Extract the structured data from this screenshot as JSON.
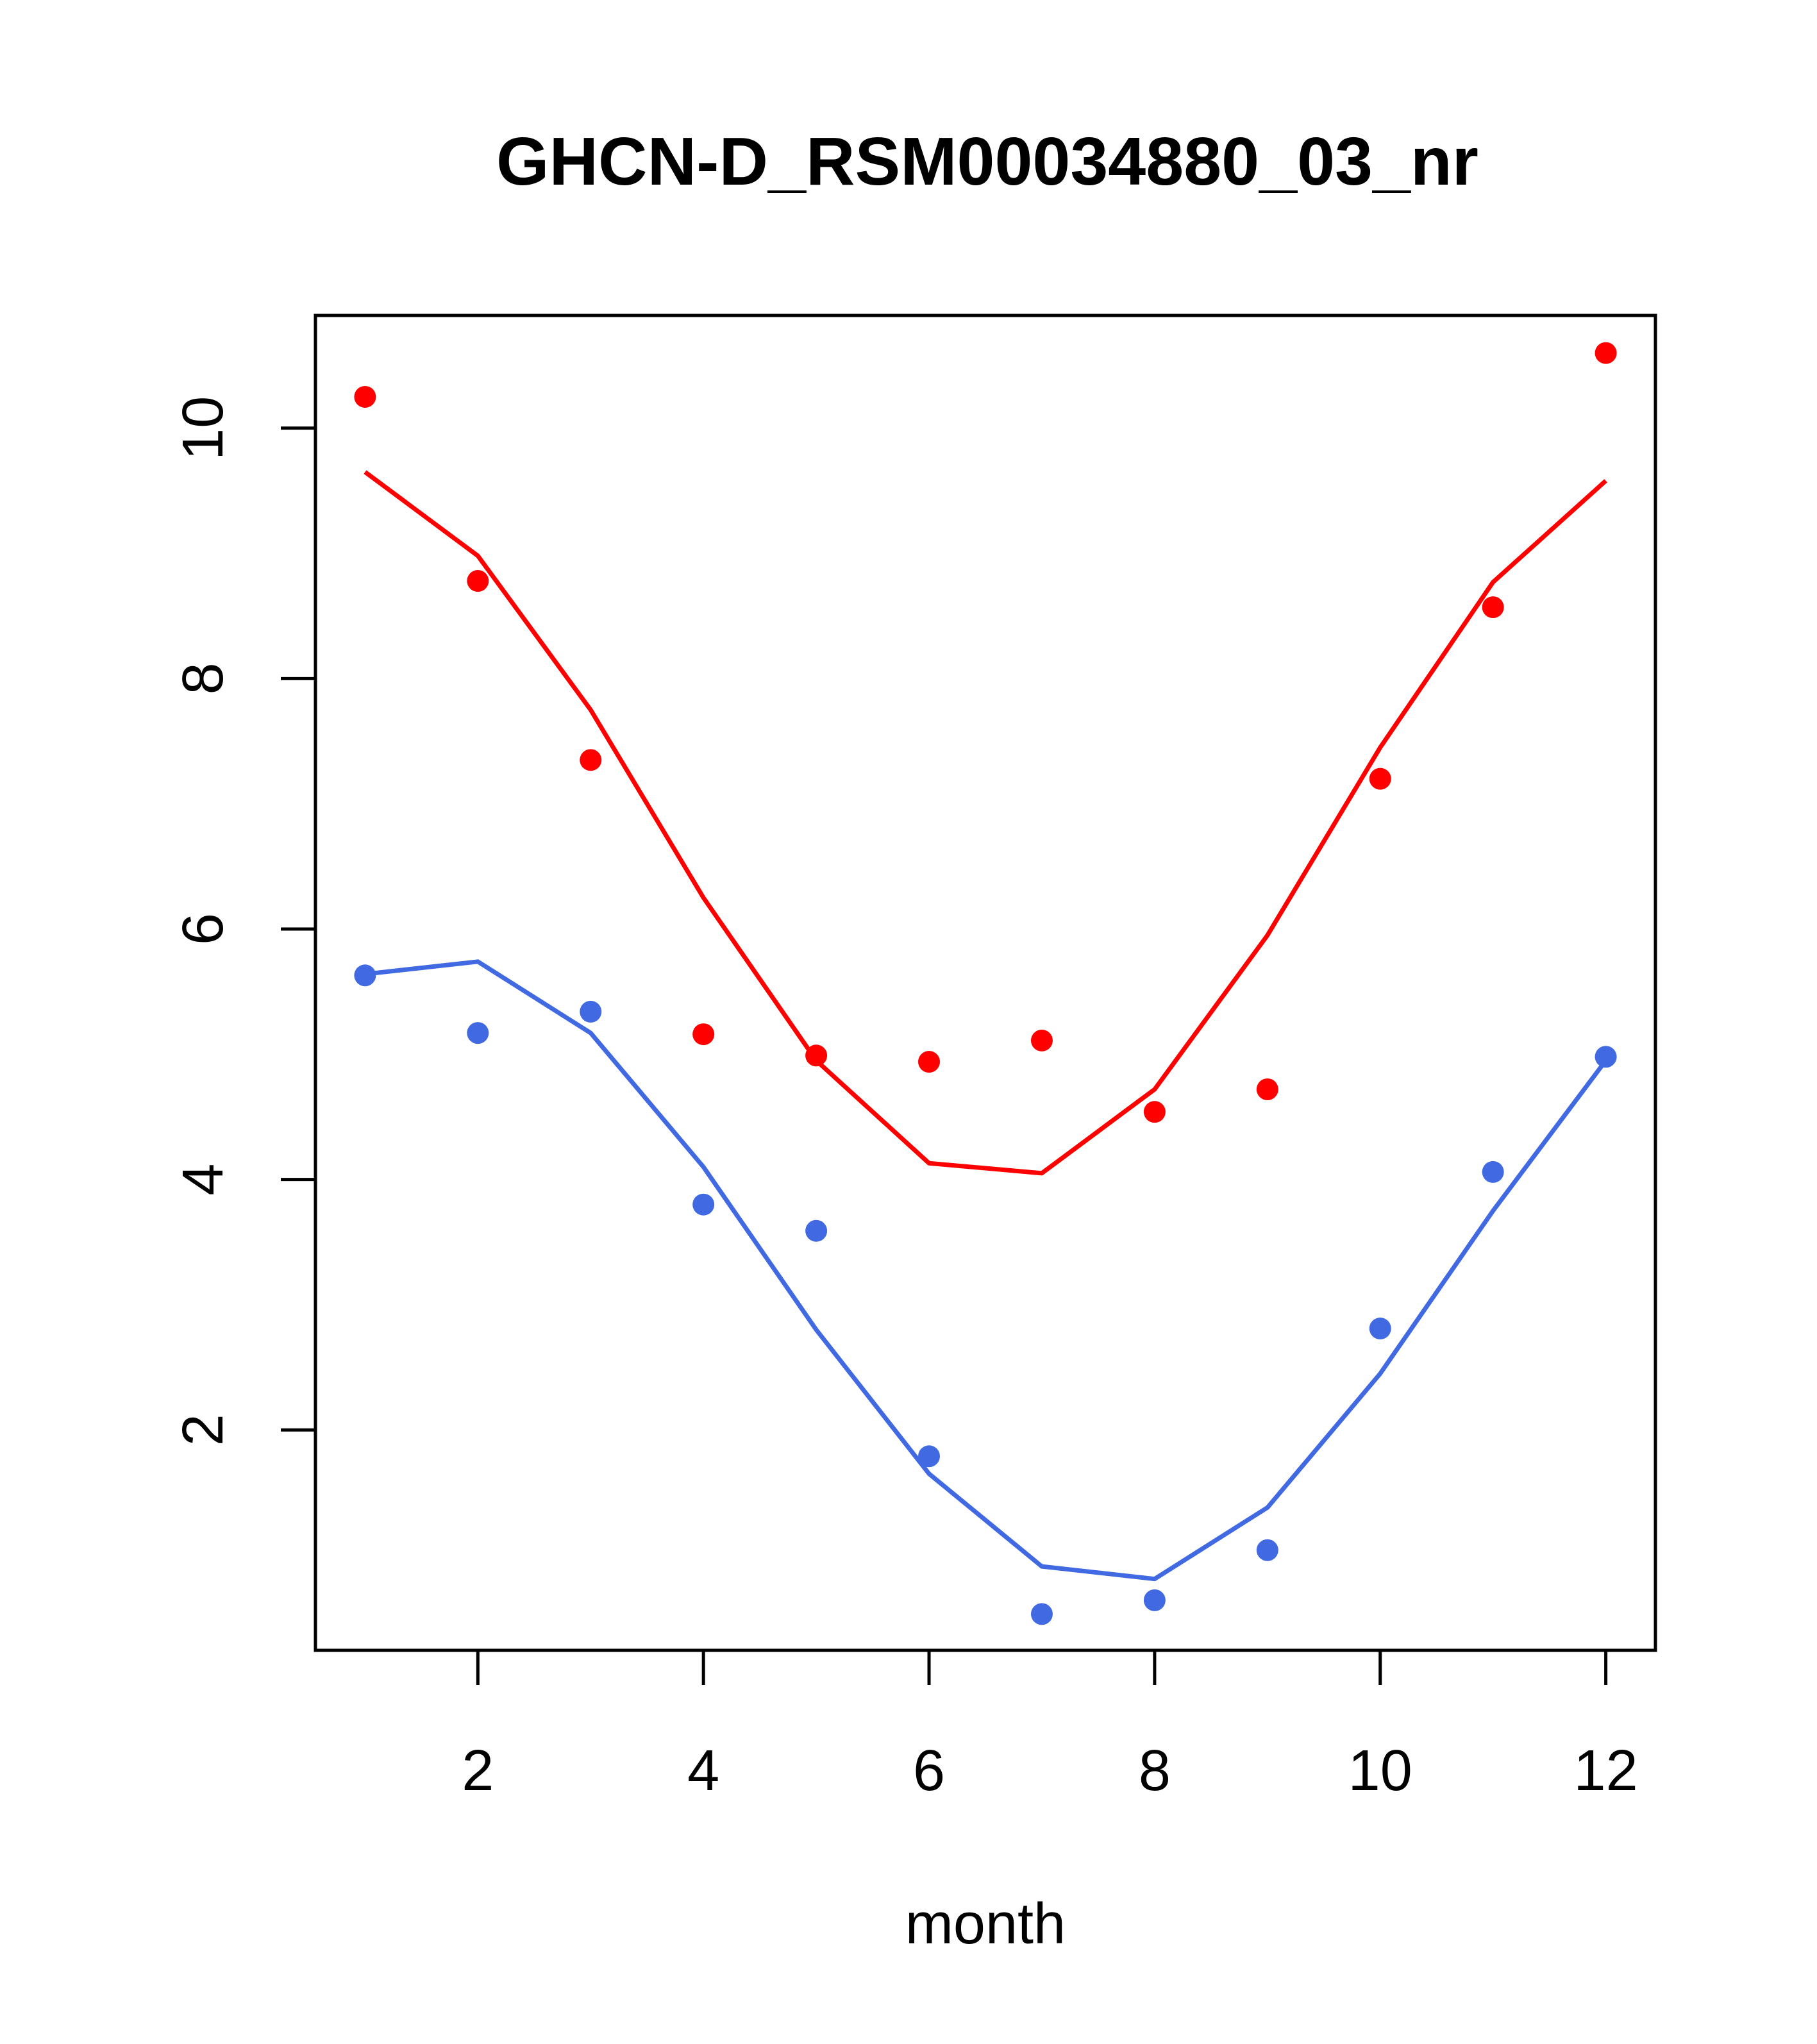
{
  "chart_data": {
    "type": "line",
    "title": "GHCN-D_RSM00034880_03_nr",
    "xlabel": "month",
    "ylabel": "",
    "xlim": [
      0.56,
      12.44
    ],
    "ylim": [
      0.24,
      10.9
    ],
    "x_ticks": [
      2,
      4,
      6,
      8,
      10,
      12
    ],
    "y_ticks": [
      2,
      4,
      6,
      8,
      10
    ],
    "grid": false,
    "legend": "none",
    "series": [
      {
        "color": "#ff0000",
        "x": [
          1,
          2,
          3,
          4,
          5,
          6,
          7,
          8,
          9,
          10,
          11,
          12
        ],
        "points": [
          10.25,
          8.78,
          7.35,
          5.16,
          4.99,
          4.94,
          5.11,
          4.54,
          4.72,
          7.2,
          8.57,
          10.6
        ],
        "line": [
          9.65,
          8.98,
          7.75,
          6.25,
          4.95,
          4.13,
          4.05,
          4.72,
          5.95,
          7.45,
          8.77,
          9.58
        ]
      },
      {
        "color": "#4169e1",
        "x": [
          1,
          2,
          3,
          4,
          5,
          6,
          7,
          8,
          9,
          10,
          11,
          12
        ],
        "points": [
          5.63,
          5.17,
          5.34,
          3.8,
          3.59,
          1.79,
          0.53,
          0.64,
          1.04,
          2.81,
          4.06,
          4.98
        ],
        "line": [
          5.64,
          5.74,
          5.17,
          4.1,
          2.8,
          1.65,
          0.91,
          0.81,
          1.38,
          2.45,
          3.75,
          4.95
        ]
      }
    ]
  }
}
